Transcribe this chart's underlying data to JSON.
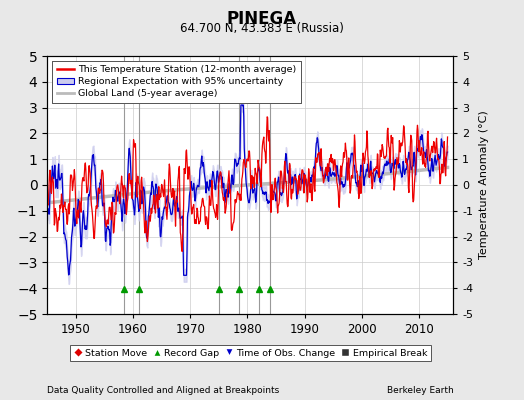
{
  "title": "PINEGA",
  "subtitle": "64.700 N, 43.383 E (Russia)",
  "ylabel": "Temperature Anomaly (°C)",
  "xlabel_left": "Data Quality Controlled and Aligned at Breakpoints",
  "xlabel_right": "Berkeley Earth",
  "ylim": [
    -5,
    5
  ],
  "xlim": [
    1945,
    2016
  ],
  "yticks": [
    -5,
    -4,
    -3,
    -2,
    -1,
    0,
    1,
    2,
    3,
    4,
    5
  ],
  "xticks": [
    1950,
    1960,
    1970,
    1980,
    1990,
    2000,
    2010
  ],
  "red_color": "#EE0000",
  "blue_color": "#0000CC",
  "blue_fill_color": "#BBBBEE",
  "gray_color": "#BBBBBB",
  "bg_color": "#FFFFFF",
  "outer_bg": "#E8E8E8",
  "grid_color": "#CCCCCC",
  "vline_color": "#999999",
  "vertical_lines": [
    1958.5,
    1961.0,
    1975.0,
    1978.5,
    1982.0,
    1984.0
  ],
  "record_gap_years": [
    1958.5,
    1961.0,
    1975.0,
    1978.5,
    1982.0,
    1984.0
  ],
  "legend_labels": [
    "This Temperature Station (12-month average)",
    "Regional Expectation with 95% uncertainty",
    "Global Land (5-year average)"
  ],
  "bottom_legend_labels": [
    "Station Move",
    "Record Gap",
    "Time of Obs. Change",
    "Empirical Break"
  ]
}
